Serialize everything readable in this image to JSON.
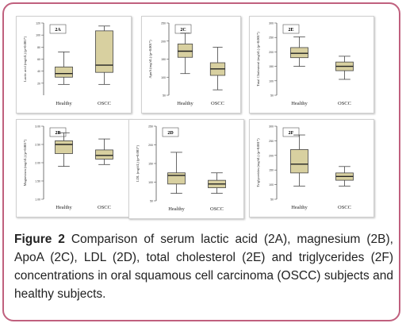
{
  "figure": {
    "caption_label": "Figure 2",
    "caption_text": "Comparison of serum lactic acid (2A), magnesium (2B), ApoA (2C), LDL (2D), total cholesterol (2E) and triglycerides (2F) concentrations in oral squamous cell carcinoma (OSCC) subjects and healthy subjects.",
    "box_color": "#d8d0a0",
    "border_color": "#c0607e"
  },
  "chart_data": [
    {
      "type": "box",
      "panel_label": "2A",
      "ylabel": "Lactic acid (mg/dL) (p=0.001*)",
      "categories": [
        "Healthy",
        "OSCC"
      ],
      "ylim": [
        0,
        120
      ],
      "yticks": [
        "20",
        "40",
        "60",
        "80",
        "100",
        "120"
      ],
      "boxes": [
        {
          "whisker_low": 18,
          "q1": 30,
          "median": 36,
          "q3": 47,
          "whisker_high": 72
        },
        {
          "whisker_low": 18,
          "q1": 38,
          "median": 50,
          "q3": 107,
          "whisker_high": 115
        }
      ]
    },
    {
      "type": "box",
      "panel_label": "2C",
      "ylabel": "ApoA (mg/dL) (p=0.001*)",
      "categories": [
        "Healthy",
        "OSCC"
      ],
      "ylim": [
        50,
        250
      ],
      "yticks": [
        "50",
        "100",
        "150",
        "200",
        "250"
      ],
      "boxes": [
        {
          "whisker_low": 110,
          "q1": 155,
          "median": 172,
          "q3": 192,
          "whisker_high": 222
        },
        {
          "whisker_low": 65,
          "q1": 105,
          "median": 123,
          "q3": 140,
          "whisker_high": 183
        }
      ]
    },
    {
      "type": "box",
      "panel_label": "2E",
      "ylabel": "Total Cholesterol (mg/dL) (p=0.001*)",
      "categories": [
        "Healthy",
        "OSCC"
      ],
      "ylim": [
        50,
        300
      ],
      "yticks": [
        "50",
        "100",
        "150",
        "200",
        "250",
        "300"
      ],
      "boxes": [
        {
          "whisker_low": 150,
          "q1": 180,
          "median": 195,
          "q3": 215,
          "whisker_high": 252
        },
        {
          "whisker_low": 105,
          "q1": 135,
          "median": 150,
          "q3": 165,
          "whisker_high": 185
        }
      ]
    },
    {
      "type": "box",
      "panel_label": "2B",
      "ylabel": "Magnesium (mg/dL) (p=0.001*)",
      "categories": [
        "Healthy",
        "OSCC"
      ],
      "ylim": [
        1.0,
        3.0
      ],
      "yticks": [
        "1.00",
        "1.50",
        "2.00",
        "2.50",
        "3.00"
      ],
      "boxes": [
        {
          "whisker_low": 1.9,
          "q1": 2.25,
          "median": 2.5,
          "q3": 2.6,
          "whisker_high": 2.82
        },
        {
          "whisker_low": 1.95,
          "q1": 2.1,
          "median": 2.2,
          "q3": 2.35,
          "whisker_high": 2.65
        }
      ]
    },
    {
      "type": "box",
      "panel_label": "2D",
      "ylabel": "LDL (mg/dL) (p=0.001*)",
      "categories": [
        "Healthy",
        "OSCC"
      ],
      "ylim": [
        50,
        250
      ],
      "yticks": [
        "50",
        "100",
        "150",
        "200",
        "250"
      ],
      "boxes": [
        {
          "whisker_low": 70,
          "q1": 95,
          "median": 118,
          "q3": 125,
          "whisker_high": 180
        },
        {
          "whisker_low": 70,
          "q1": 85,
          "median": 95,
          "q3": 105,
          "whisker_high": 125
        }
      ]
    },
    {
      "type": "box",
      "panel_label": "2F",
      "ylabel": "Triglycerides (mg/dL) (p=0.001*)",
      "categories": [
        "Healthy",
        "OSCC"
      ],
      "ylim": [
        50,
        300
      ],
      "yticks": [
        "50",
        "100",
        "150",
        "200",
        "250",
        "300"
      ],
      "boxes": [
        {
          "whisker_low": 95,
          "q1": 140,
          "median": 170,
          "q3": 220,
          "whisker_high": 270
        },
        {
          "whisker_low": 95,
          "q1": 115,
          "median": 128,
          "q3": 140,
          "whisker_high": 162
        }
      ]
    }
  ]
}
